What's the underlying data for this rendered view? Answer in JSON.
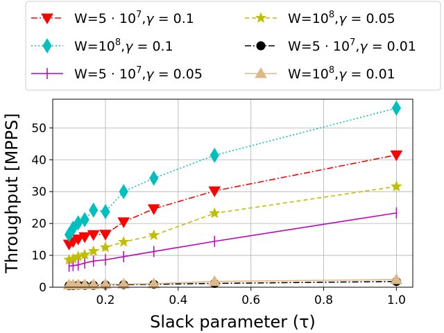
{
  "chart_data": {
    "type": "line",
    "xlabel": "Slack parameter (τ)",
    "ylabel": "Throughput [MPPS]",
    "xlim": [
      0.055,
      1.045
    ],
    "ylim": [
      0,
      59
    ],
    "x_ticks": [
      0.2,
      0.4,
      0.6,
      0.8,
      1.0
    ],
    "x_tick_labels": [
      "0.2",
      "0.4",
      "0.6",
      "0.8",
      "1.0"
    ],
    "y_ticks": [
      0,
      10,
      20,
      30,
      40,
      50
    ],
    "y_tick_labels": [
      "0",
      "10",
      "20",
      "30",
      "40",
      "50"
    ],
    "grid": true,
    "legend_placement": "top, above plot, 2 columns",
    "x": [
      0.1,
      0.111,
      0.125,
      0.143,
      0.167,
      0.2,
      0.25,
      0.333,
      0.5,
      1.0
    ],
    "series": [
      {
        "name": "W=5·10⁷,γ = 0.1",
        "legend_parts": [
          "W=5 · 10",
          "7",
          ",",
          "γ",
          " = 0.1"
        ],
        "color": "#ff0000",
        "dash": "9,3,2,3",
        "marker": "triangle-down",
        "values": [
          13.5,
          14.3,
          15.1,
          15.8,
          16.5,
          16.6,
          20.5,
          24.6,
          30.2,
          41.5
        ]
      },
      {
        "name": "W=10⁸,γ = 0.1",
        "legend_parts": [
          "W=10",
          "8",
          ",",
          "γ",
          " = 0.1"
        ],
        "color": "#00bfbf",
        "dash": "2,3",
        "marker": "diamond",
        "values": [
          16.5,
          18.5,
          20.2,
          21.2,
          24.2,
          23.7,
          30.0,
          34.2,
          41.4,
          56.2
        ]
      },
      {
        "name": "W=5·10⁷,γ = 0.05",
        "legend_parts": [
          "W=5 · 10",
          "7",
          ",",
          "γ",
          " = 0.05"
        ],
        "color": "#bf00bf",
        "dash": "",
        "marker": "vline",
        "values": [
          6.6,
          6.8,
          7.0,
          7.6,
          8.2,
          8.6,
          9.6,
          11.2,
          14.4,
          23.3
        ]
      },
      {
        "name": "W=10⁸,γ = 0.05",
        "legend_parts": [
          "W=10",
          "8",
          ",",
          "γ",
          " = 0.05"
        ],
        "color": "#bfbf00",
        "dash": "6,4",
        "marker": "star",
        "values": [
          8.6,
          8.9,
          9.6,
          10.2,
          11.3,
          12.5,
          14.2,
          16.3,
          23.2,
          31.6
        ]
      },
      {
        "name": "W=5·10⁷,γ = 0.01",
        "legend_parts": [
          "W=5 · 10",
          "7",
          ",",
          "γ",
          " = 0.01"
        ],
        "color": "#000000",
        "dash": "9,3,2,3",
        "marker": "circle",
        "values": [
          0.5,
          0.5,
          0.6,
          0.6,
          0.6,
          0.7,
          0.8,
          0.9,
          1.2,
          1.8
        ]
      },
      {
        "name": "W=10⁸,γ = 0.01",
        "legend_parts": [
          "W=10",
          "8",
          ",",
          "γ",
          " = 0.01"
        ],
        "color": "#deb887",
        "dash": "",
        "marker": "triangle-up",
        "values": [
          0.7,
          0.7,
          0.7,
          0.8,
          0.8,
          0.9,
          1.0,
          1.1,
          1.8,
          2.4
        ]
      }
    ]
  }
}
